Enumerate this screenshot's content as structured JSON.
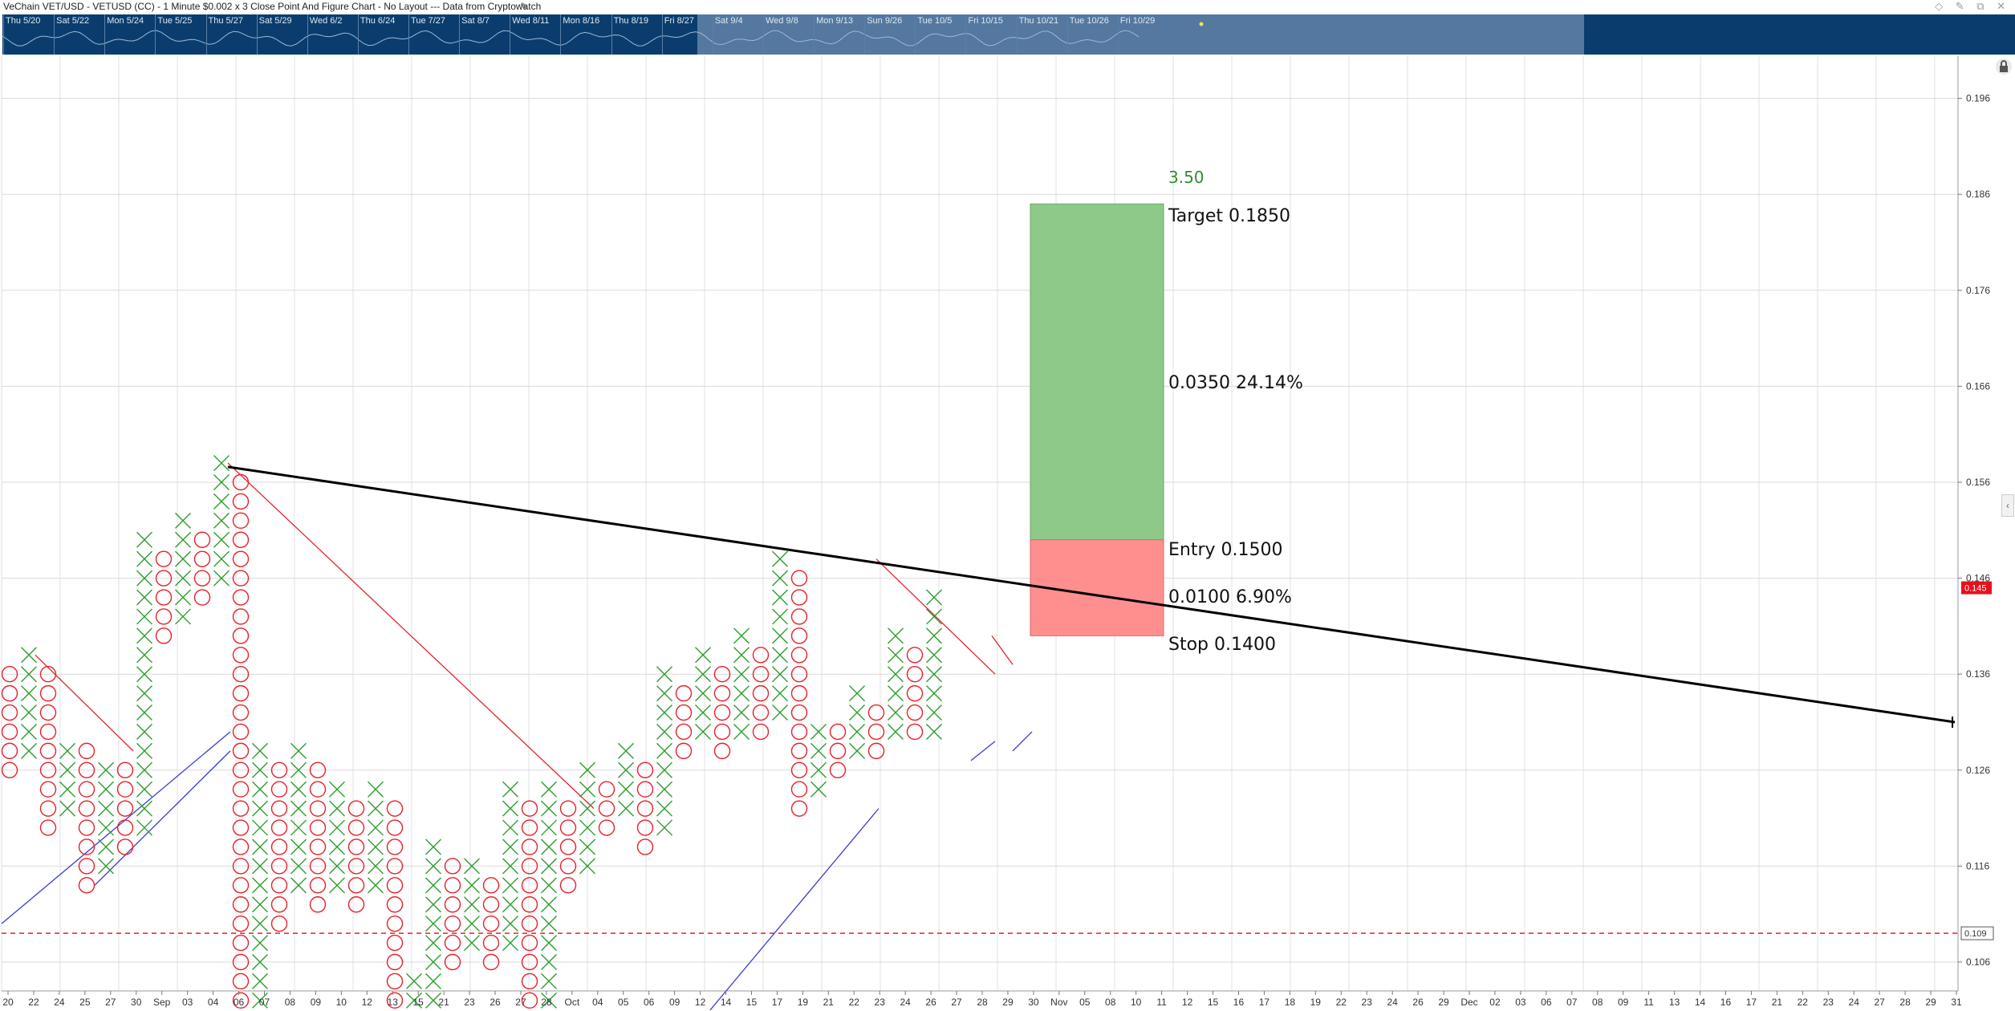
{
  "window": {
    "title": "VeChain VET/USD - VETUSD (CC) - 1 Minute $0.002 x 3 Close Point And Figure Chart - No Layout --- Data from Cryptowatch",
    "edit_icon": "pencil-icon",
    "controls": "◇ ✎ ⧉ ✕"
  },
  "navigator": {
    "dates": [
      "Thu 5/20",
      "Sat 5/22",
      "Mon 5/24",
      "Tue 5/25",
      "Thu 5/27",
      "Sat 5/29",
      "Wed 6/2",
      "Thu 6/24",
      "Tue 7/27",
      "Sat 8/7",
      "Wed 8/11",
      "Mon 8/16",
      "Thu 8/19",
      "Fri 8/27",
      "Sat 9/4",
      "Wed 9/8",
      "Mon 9/13",
      "Sun 9/26",
      "Tue 10/5",
      "Fri 10/15",
      "Thu 10/21",
      "Tue 10/26",
      "Fri 10/29"
    ]
  },
  "icons": {
    "lock": "lock-icon",
    "collapse": "chevron-left-icon"
  },
  "colors": {
    "x_mark": "#2e9e2e",
    "o_mark": "#e8202a",
    "trend": "#000000",
    "support": "#3b3bd6",
    "resistance": "#e8202a",
    "profit_zone": "#8fc98a",
    "loss_zone": "#ff8f8f",
    "price_tag": "#e8101a"
  },
  "chart_data": {
    "type": "point-and-figure",
    "box_size": 0.002,
    "reversal": 3,
    "ylim": [
      0.101,
      0.2
    ],
    "y_ticks": [
      "0.196",
      "0.186",
      "0.176",
      "0.166",
      "0.156",
      "0.146",
      "0.136",
      "0.126",
      "0.116",
      "0.106"
    ],
    "x_ticks": [
      "20",
      "22",
      "24",
      "25",
      "27",
      "30",
      "Sep",
      "03",
      "04",
      "06",
      "07",
      "08",
      "09",
      "10",
      "12",
      "13",
      "15",
      "21",
      "23",
      "26",
      "27",
      "28",
      "Oct",
      "04",
      "05",
      "06",
      "09",
      "12",
      "14",
      "15",
      "17",
      "19",
      "21",
      "22",
      "23",
      "24",
      "26",
      "27",
      "28",
      "29",
      "30",
      "Nov",
      "05",
      "08",
      "10",
      "11",
      "12",
      "15",
      "16",
      "17",
      "18",
      "19",
      "22",
      "23",
      "24",
      "26",
      "29",
      "Dec",
      "02",
      "03",
      "06",
      "07",
      "08",
      "09",
      "11",
      "13",
      "14",
      "16",
      "17",
      "21",
      "22",
      "23",
      "24",
      "27",
      "28",
      "29",
      "31"
    ],
    "columns": [
      {
        "type": "O",
        "high": 0.136,
        "low": 0.126
      },
      {
        "type": "X",
        "high": 0.138,
        "low": 0.128
      },
      {
        "type": "O",
        "high": 0.136,
        "low": 0.12
      },
      {
        "type": "X",
        "high": 0.128,
        "low": 0.122
      },
      {
        "type": "O",
        "high": 0.128,
        "low": 0.114
      },
      {
        "type": "X",
        "high": 0.126,
        "low": 0.116
      },
      {
        "type": "O",
        "high": 0.126,
        "low": 0.118
      },
      {
        "type": "X",
        "high": 0.15,
        "low": 0.12
      },
      {
        "type": "O",
        "high": 0.148,
        "low": 0.14
      },
      {
        "type": "X",
        "high": 0.152,
        "low": 0.142
      },
      {
        "type": "O",
        "high": 0.15,
        "low": 0.144
      },
      {
        "type": "X",
        "high": 0.158,
        "low": 0.146
      },
      {
        "type": "O",
        "high": 0.156,
        "low": 0.102
      },
      {
        "type": "X",
        "high": 0.128,
        "low": 0.102
      },
      {
        "type": "O",
        "high": 0.126,
        "low": 0.11
      },
      {
        "type": "X",
        "high": 0.128,
        "low": 0.114
      },
      {
        "type": "O",
        "high": 0.126,
        "low": 0.112
      },
      {
        "type": "X",
        "high": 0.124,
        "low": 0.114
      },
      {
        "type": "O",
        "high": 0.122,
        "low": 0.112
      },
      {
        "type": "X",
        "high": 0.124,
        "low": 0.114
      },
      {
        "type": "O",
        "high": 0.122,
        "low": 0.1
      },
      {
        "type": "X",
        "high": 0.104,
        "low": 0.1
      },
      {
        "type": "X",
        "high": 0.118,
        "low": 0.102
      },
      {
        "type": "O",
        "high": 0.116,
        "low": 0.106
      },
      {
        "type": "X",
        "high": 0.116,
        "low": 0.108
      },
      {
        "type": "O",
        "high": 0.114,
        "low": 0.106
      },
      {
        "type": "X",
        "high": 0.124,
        "low": 0.108
      },
      {
        "type": "O",
        "high": 0.122,
        "low": 0.1
      },
      {
        "type": "X",
        "high": 0.124,
        "low": 0.102
      },
      {
        "type": "O",
        "high": 0.122,
        "low": 0.114
      },
      {
        "type": "X",
        "high": 0.126,
        "low": 0.116
      },
      {
        "type": "O",
        "high": 0.124,
        "low": 0.12
      },
      {
        "type": "X",
        "high": 0.128,
        "low": 0.122
      },
      {
        "type": "O",
        "high": 0.126,
        "low": 0.118
      },
      {
        "type": "X",
        "high": 0.136,
        "low": 0.12
      },
      {
        "type": "O",
        "high": 0.134,
        "low": 0.128
      },
      {
        "type": "X",
        "high": 0.138,
        "low": 0.13
      },
      {
        "type": "O",
        "high": 0.136,
        "low": 0.128
      },
      {
        "type": "X",
        "high": 0.14,
        "low": 0.13
      },
      {
        "type": "O",
        "high": 0.138,
        "low": 0.13
      },
      {
        "type": "X",
        "high": 0.148,
        "low": 0.132
      },
      {
        "type": "O",
        "high": 0.146,
        "low": 0.122
      },
      {
        "type": "X",
        "high": 0.13,
        "low": 0.124
      },
      {
        "type": "O",
        "high": 0.13,
        "low": 0.126
      },
      {
        "type": "X",
        "high": 0.134,
        "low": 0.128
      },
      {
        "type": "O",
        "high": 0.132,
        "low": 0.128
      },
      {
        "type": "X",
        "high": 0.14,
        "low": 0.13
      },
      {
        "type": "O",
        "high": 0.138,
        "low": 0.13
      },
      {
        "type": "X",
        "high": 0.144,
        "low": 0.13
      }
    ],
    "position": {
      "target": 0.185,
      "entry": 0.15,
      "stop": 0.14
    },
    "labels": {
      "ratio": "3.50",
      "target": "Target   0.1850",
      "reward": "0.0350   24.14%",
      "entry": "Entry   0.1500",
      "risk": "0.0100   6.90%",
      "stop": "Stop   0.1400"
    },
    "last_price_tag": "0.145",
    "dashed_level": 0.109,
    "dashed_level_tag": "0.109",
    "trendline": {
      "from": 0.1576,
      "to": 0.131
    },
    "grid": true
  }
}
